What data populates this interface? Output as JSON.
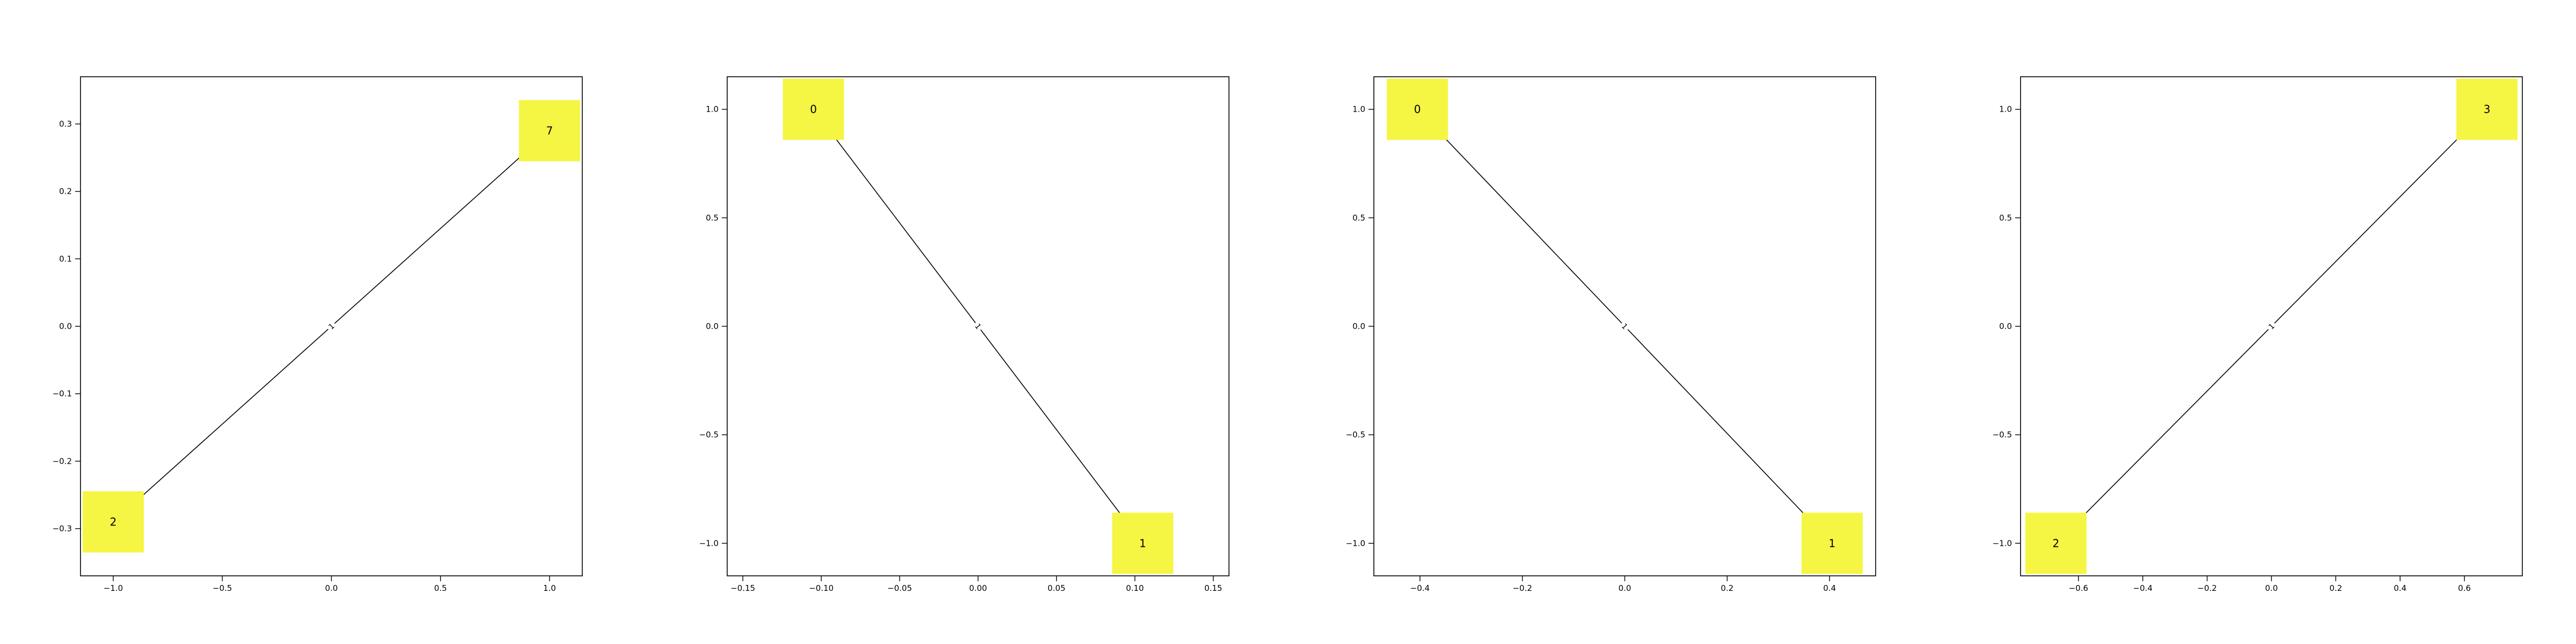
{
  "node_color": "#f5f543",
  "edge_color": "#000000",
  "chart_data": [
    {
      "type": "network-graph",
      "xlim": [
        -1.15,
        1.15
      ],
      "ylim": [
        -0.37,
        0.37
      ],
      "x_ticks": [
        -1.0,
        -0.5,
        0.0,
        0.5,
        1.0
      ],
      "x_tick_labels": [
        "−1.0",
        "−0.5",
        "0.0",
        "0.5",
        "1.0"
      ],
      "y_ticks": [
        -0.3,
        -0.2,
        -0.1,
        0.0,
        0.1,
        0.2,
        0.3
      ],
      "y_tick_labels": [
        "−0.3",
        "−0.2",
        "−0.1",
        "0.0",
        "0.1",
        "0.2",
        "0.3"
      ],
      "nodes": [
        {
          "label": "2",
          "x": -1.0,
          "y": -0.29
        },
        {
          "label": "7",
          "x": 1.0,
          "y": 0.29
        }
      ],
      "edges": [
        {
          "source": "2",
          "target": "7",
          "label": "1"
        }
      ]
    },
    {
      "type": "network-graph",
      "xlim": [
        -0.16,
        0.16
      ],
      "ylim": [
        -1.15,
        1.15
      ],
      "x_ticks": [
        -0.15,
        -0.1,
        -0.05,
        0.0,
        0.05,
        0.1,
        0.15
      ],
      "x_tick_labels": [
        "−0.15",
        "−0.10",
        "−0.05",
        "0.00",
        "0.05",
        "0.10",
        "0.15"
      ],
      "y_ticks": [
        -1.0,
        -0.5,
        0.0,
        0.5,
        1.0
      ],
      "y_tick_labels": [
        "−1.0",
        "−0.5",
        "0.0",
        "0.5",
        "1.0"
      ],
      "nodes": [
        {
          "label": "0",
          "x": -0.105,
          "y": 1.0
        },
        {
          "label": "1",
          "x": 0.105,
          "y": -1.0
        }
      ],
      "edges": [
        {
          "source": "0",
          "target": "1",
          "label": "1"
        }
      ]
    },
    {
      "type": "network-graph",
      "xlim": [
        -0.49,
        0.49
      ],
      "ylim": [
        -1.15,
        1.15
      ],
      "x_ticks": [
        -0.4,
        -0.2,
        0.0,
        0.2,
        0.4
      ],
      "x_tick_labels": [
        "−0.4",
        "−0.2",
        "0.0",
        "0.2",
        "0.4"
      ],
      "y_ticks": [
        -1.0,
        -0.5,
        0.0,
        0.5,
        1.0
      ],
      "y_tick_labels": [
        "−1.0",
        "−0.5",
        "0.0",
        "0.5",
        "1.0"
      ],
      "nodes": [
        {
          "label": "0",
          "x": -0.405,
          "y": 1.0
        },
        {
          "label": "1",
          "x": 0.405,
          "y": -1.0
        }
      ],
      "edges": [
        {
          "source": "0",
          "target": "1",
          "label": "1"
        }
      ]
    },
    {
      "type": "network-graph",
      "xlim": [
        -0.78,
        0.78
      ],
      "ylim": [
        -1.15,
        1.15
      ],
      "x_ticks": [
        -0.6,
        -0.4,
        -0.2,
        0.0,
        0.2,
        0.4,
        0.6
      ],
      "x_tick_labels": [
        "−0.6",
        "−0.4",
        "−0.2",
        "0.0",
        "0.2",
        "0.4",
        "0.6"
      ],
      "y_ticks": [
        -1.0,
        -0.5,
        0.0,
        0.5,
        1.0
      ],
      "y_tick_labels": [
        "−1.0",
        "−0.5",
        "0.0",
        "0.5",
        "1.0"
      ],
      "nodes": [
        {
          "label": "2",
          "x": -0.67,
          "y": -1.0
        },
        {
          "label": "3",
          "x": 0.67,
          "y": 1.0
        }
      ],
      "edges": [
        {
          "source": "2",
          "target": "3",
          "label": "1"
        }
      ]
    }
  ]
}
